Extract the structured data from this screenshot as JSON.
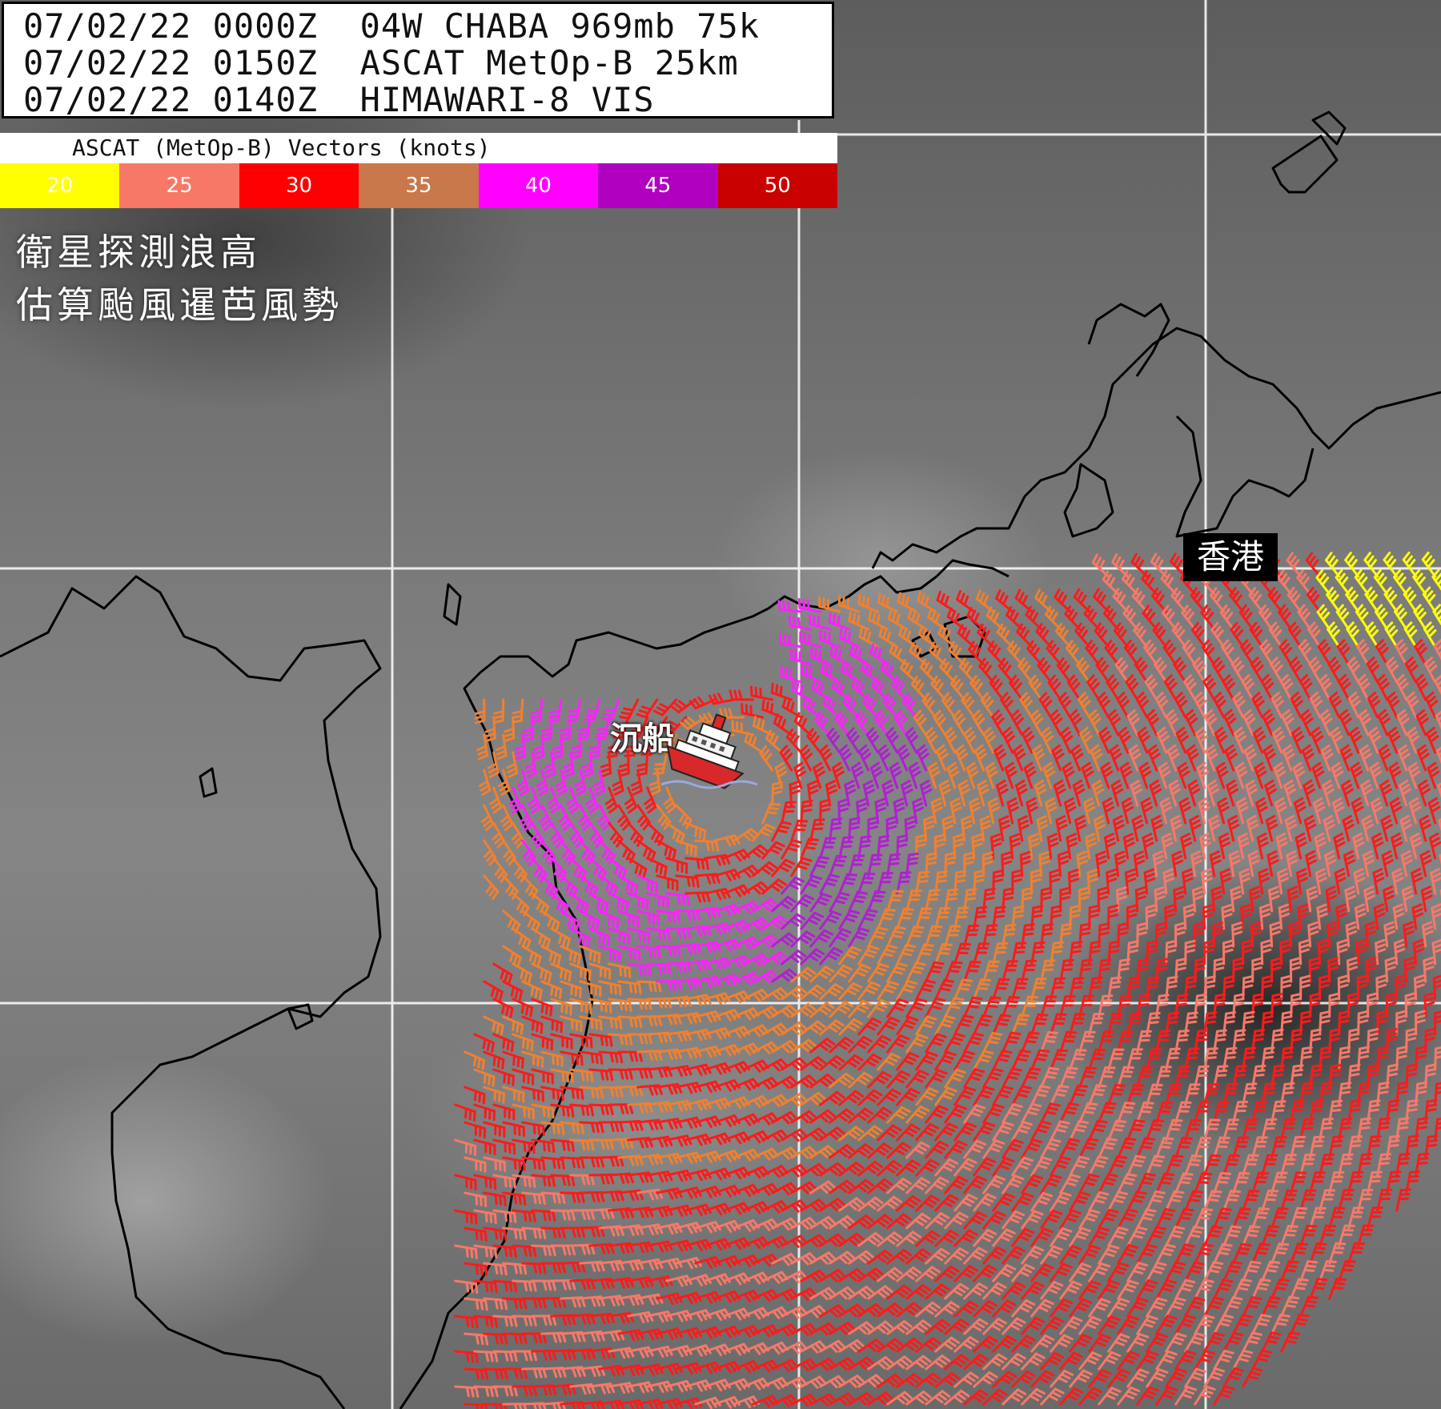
{
  "header": {
    "line1": "07/02/22 0000Z  04W CHABA 969mb 75k",
    "line2": "07/02/22 0150Z  ASCAT MetOp-B 25km",
    "line3": "07/02/22 0140Z  HIMAWARI-8 VIS"
  },
  "legend": {
    "title": "ASCAT (MetOp-B) Vectors (knots)",
    "items": [
      {
        "label": "20",
        "color": "#ffff00"
      },
      {
        "label": "25",
        "color": "#f87868"
      },
      {
        "label": "30",
        "color": "#ff0000"
      },
      {
        "label": "35",
        "color": "#c8784a"
      },
      {
        "label": "40",
        "color": "#ff00ff"
      },
      {
        "label": "45",
        "color": "#b000c0"
      },
      {
        "label": "50",
        "color": "#c80000"
      }
    ]
  },
  "caption": {
    "line1": "衛星探測浪高",
    "line2": "估算颱風暹芭風勢"
  },
  "labels": {
    "hong_kong": "香港",
    "sunk_ship": "沉船"
  },
  "icons": {
    "ship": "sinking-ship-icon"
  }
}
